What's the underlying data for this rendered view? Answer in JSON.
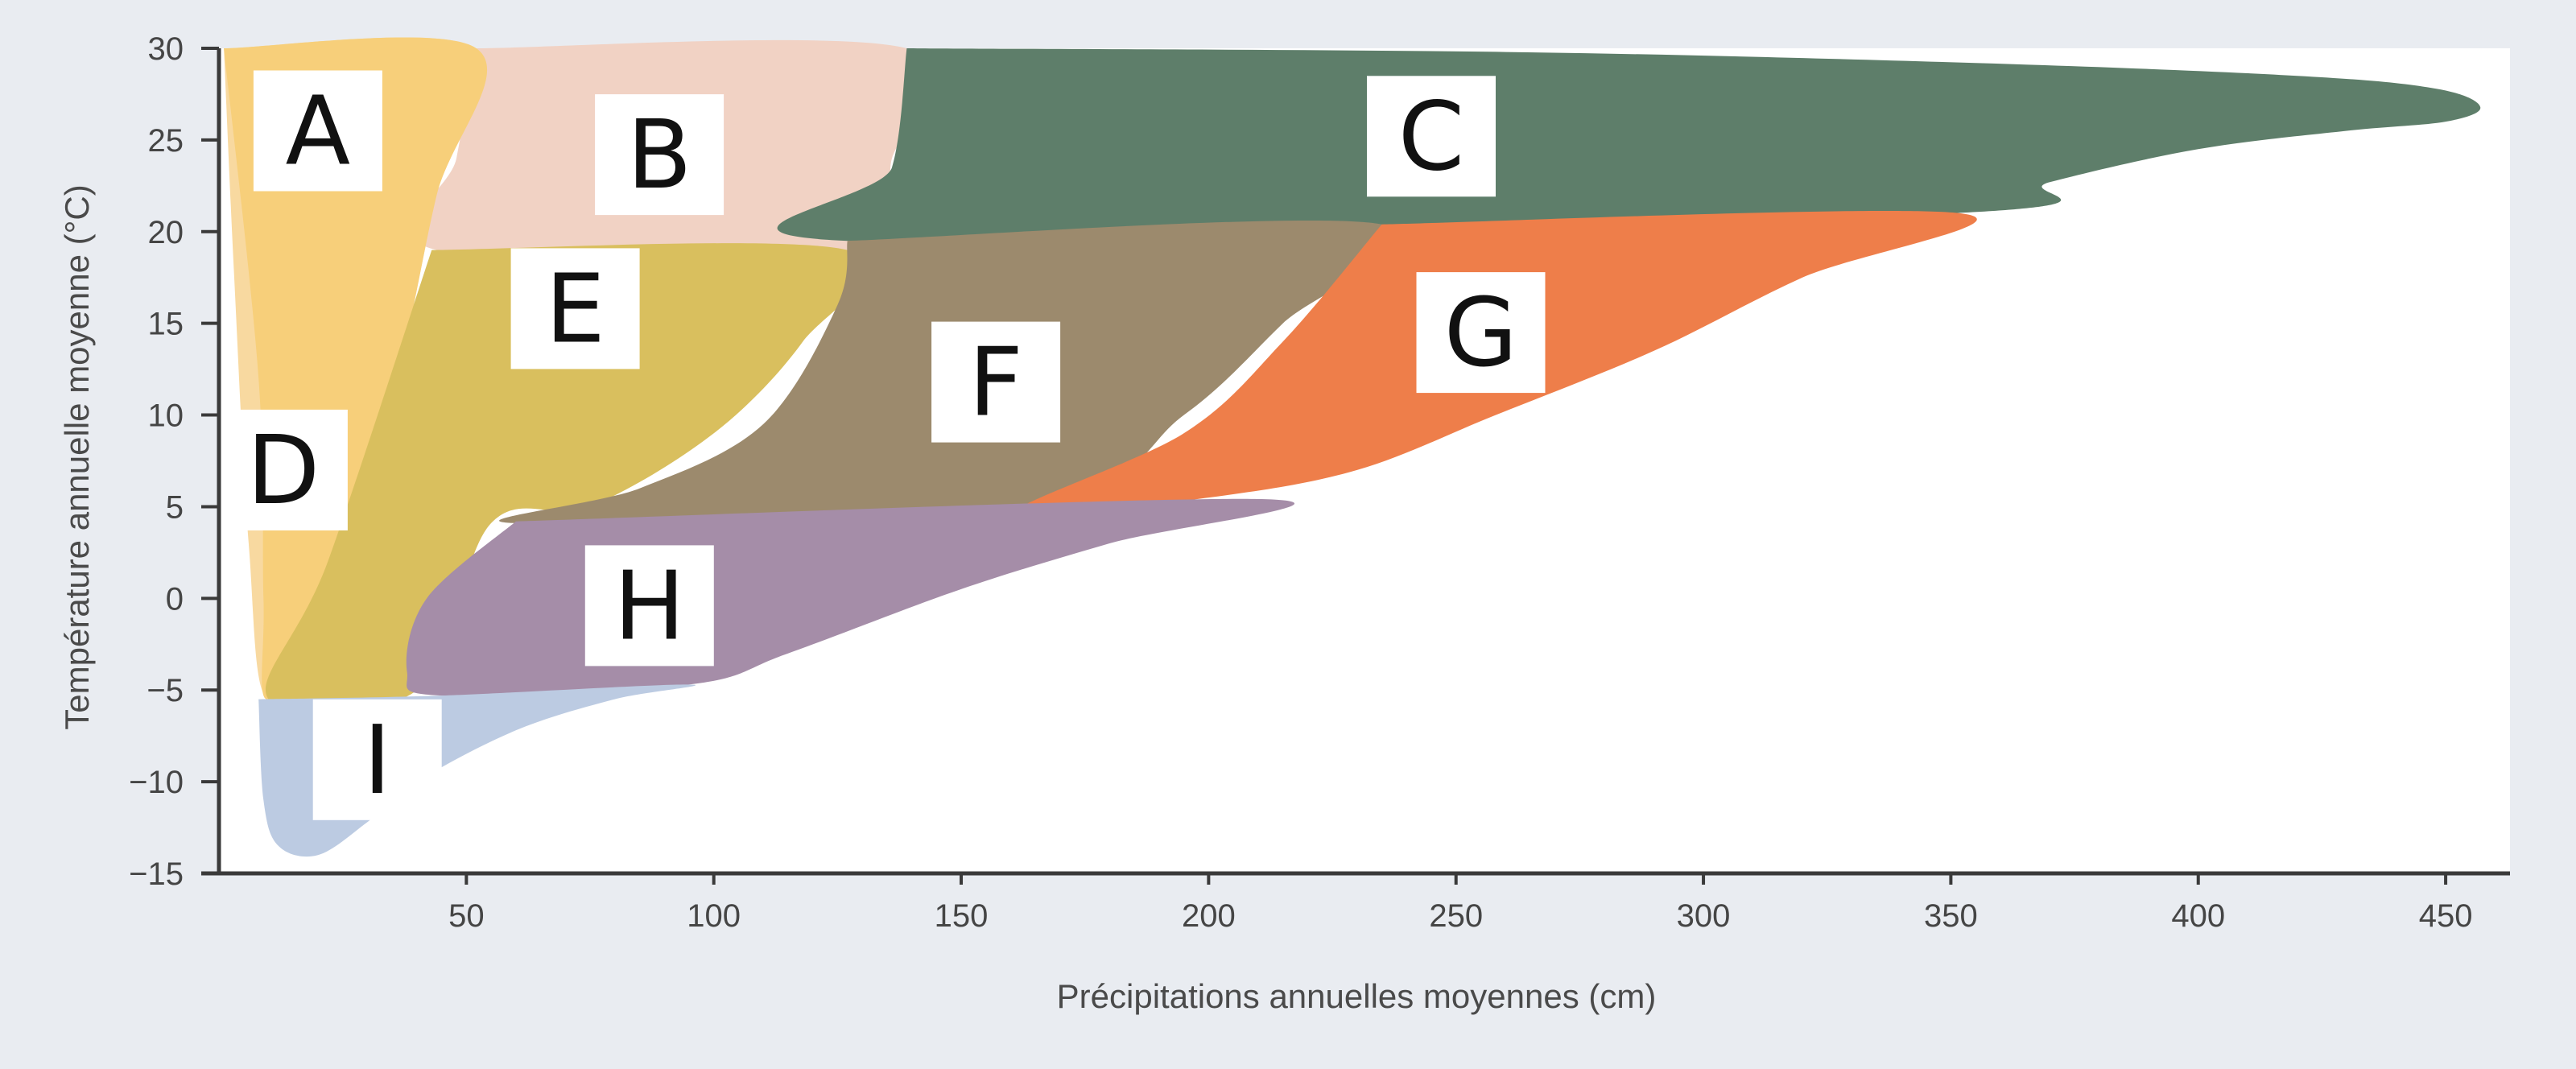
{
  "chart_data": {
    "type": "area",
    "xlabel": "Précipitations annuelles moyennes (cm)",
    "ylabel": "Température annuelle moyenne (°C)",
    "xlim": [
      0,
      463
    ],
    "ylim": [
      -15,
      30
    ],
    "x_ticks": [
      "50",
      "100",
      "150",
      "200",
      "250",
      "300",
      "350",
      "400",
      "450"
    ],
    "y_ticks": [
      "30",
      "25",
      "20",
      "15",
      "10",
      "5",
      "0",
      "−5",
      "−10",
      "−15"
    ],
    "grid": false,
    "legend": "none",
    "regions": [
      {
        "label": "A",
        "color": "#f8d9a0",
        "label_at": [
          20,
          25.5
        ],
        "points": [
          [
            1,
            30
          ],
          [
            52,
            30
          ],
          [
            44,
            22
          ],
          [
            36,
            12
          ],
          [
            24,
            1
          ],
          [
            10,
            -5.5
          ],
          [
            6,
            3
          ],
          [
            3,
            18
          ],
          [
            1,
            30
          ]
        ]
      },
      {
        "label": "B",
        "color": "#f1d2c4",
        "label_at": [
          89,
          24.2
        ],
        "points": [
          [
            52,
            30
          ],
          [
            139,
            30
          ],
          [
            136,
            24
          ],
          [
            127,
            19
          ],
          [
            44,
            19
          ],
          [
            48,
            24
          ],
          [
            52,
            30
          ]
        ]
      },
      {
        "label": "C",
        "color": "#5e7e6a",
        "label_at": [
          245,
          25.2
        ],
        "points": [
          [
            139,
            30
          ],
          [
            260,
            29.8
          ],
          [
            355,
            29.2
          ],
          [
            420,
            28.5
          ],
          [
            448,
            27.8
          ],
          [
            457,
            26.8
          ],
          [
            450,
            26
          ],
          [
            430,
            25.5
          ],
          [
            400,
            24.5
          ],
          [
            370,
            22.7
          ],
          [
            350,
            21
          ],
          [
            127,
            19.5
          ],
          [
            136,
            23.5
          ],
          [
            139,
            30
          ]
        ]
      },
      {
        "label": "D",
        "color": "#f7cf7a",
        "label_at": [
          13,
          7
        ],
        "points": [
          [
            1,
            30
          ],
          [
            8,
            12
          ],
          [
            9,
            0
          ],
          [
            10,
            -5.5
          ],
          [
            24,
            1
          ],
          [
            36,
            12
          ],
          [
            44,
            22
          ],
          [
            52,
            30
          ],
          [
            1,
            30
          ]
        ]
      },
      {
        "label": "E",
        "color": "#d9bf5e",
        "label_at": [
          72,
          15.8
        ],
        "points": [
          [
            43,
            19
          ],
          [
            127,
            19
          ],
          [
            118,
            14
          ],
          [
            100,
            9
          ],
          [
            75,
            5
          ],
          [
            55,
            4.1
          ],
          [
            40,
            -5
          ],
          [
            10,
            -5.5
          ],
          [
            22,
            2
          ],
          [
            43,
            19
          ]
        ]
      },
      {
        "label": "F",
        "color": "#9c8a6d",
        "label_at": [
          157,
          11.8
        ],
        "points": [
          [
            127,
            19.5
          ],
          [
            235,
            20.4
          ],
          [
            215,
            15
          ],
          [
            195,
            10
          ],
          [
            165,
            5.2
          ],
          [
            60,
            4.1
          ],
          [
            85,
            6
          ],
          [
            110,
            9.5
          ],
          [
            125,
            16
          ],
          [
            127,
            19.5
          ]
        ]
      },
      {
        "label": "G",
        "color": "#ee7e4a",
        "label_at": [
          255,
          14.5
        ],
        "points": [
          [
            235,
            20.4
          ],
          [
            352,
            21
          ],
          [
            320,
            17.5
          ],
          [
            290,
            13.5
          ],
          [
            258,
            10
          ],
          [
            230,
            7
          ],
          [
            200,
            5.5
          ],
          [
            160,
            4.5
          ],
          [
            195,
            9
          ],
          [
            215,
            14
          ],
          [
            235,
            20.4
          ]
        ]
      },
      {
        "label": "H",
        "color": "#a58da8",
        "label_at": [
          87,
          -0.4
        ],
        "points": [
          [
            60,
            4.2
          ],
          [
            212,
            5.4
          ],
          [
            180,
            3
          ],
          [
            150,
            0.5
          ],
          [
            115,
            -3
          ],
          [
            95,
            -4.7
          ],
          [
            45,
            -5.3
          ],
          [
            38,
            -4
          ],
          [
            42,
            0
          ],
          [
            60,
            4.2
          ]
        ]
      },
      {
        "label": "I",
        "color": "#bccbe2",
        "label_at": [
          32,
          -8.8
        ],
        "points": [
          [
            8,
            -5.5
          ],
          [
            45,
            -5.3
          ],
          [
            95,
            -4.7
          ],
          [
            80,
            -5.5
          ],
          [
            60,
            -7.2
          ],
          [
            40,
            -10
          ],
          [
            30,
            -12.2
          ],
          [
            20,
            -14
          ],
          [
            12,
            -13.5
          ],
          [
            9,
            -11
          ],
          [
            8,
            -5.5
          ]
        ]
      }
    ]
  }
}
